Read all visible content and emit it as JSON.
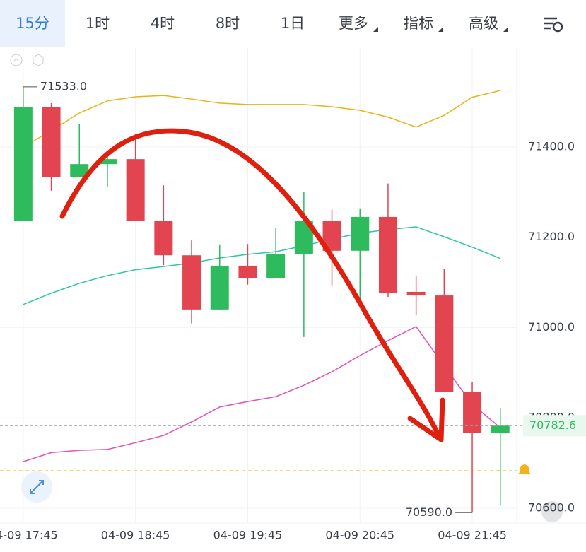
{
  "tabs": {
    "items": [
      "15分",
      "1时",
      "4时",
      "8时",
      "1日",
      "更多",
      "指标",
      "高级"
    ],
    "active": 0
  },
  "chart_data": {
    "type": "candlestick",
    "categories": [
      "04-09 17:45",
      null,
      null,
      null,
      "04-09 18:45",
      null,
      null,
      null,
      "04-09 19:45",
      null,
      null,
      null,
      "04-09 20:45",
      null,
      null,
      null,
      "04-09 21:45",
      null
    ],
    "open": [
      71237,
      71489,
      71333,
      71362,
      71373,
      71236,
      71160,
      71040,
      71137,
      71110,
      71162,
      71237,
      71170,
      71245,
      71079,
      71071,
      70857,
      70766
    ],
    "high": [
      71533,
      71497,
      71450,
      71389,
      71428,
      71315,
      71193,
      71184,
      71185,
      71220,
      71300,
      71261,
      71264,
      71319,
      71115,
      71129,
      70880,
      70822
    ],
    "low": [
      71237,
      71303,
      71333,
      71311,
      71236,
      71138,
      71009,
      71040,
      71095,
      71110,
      70979,
      71092,
      71060,
      71068,
      71027,
      70857,
      70590,
      70606
    ],
    "close": [
      71489,
      71333,
      71362,
      71373,
      71236,
      71160,
      71040,
      71137,
      71110,
      71162,
      71237,
      71170,
      71245,
      71077,
      71071,
      70857,
      70766,
      70782.6
    ],
    "up_color": "#2dbb5d",
    "down_color": "#e2454f",
    "lines": [
      {
        "color": "#e8b316",
        "values": [
          71400,
          71436,
          71475,
          71502,
          71511,
          71514,
          71506,
          71497,
          71494,
          71494,
          71494,
          71489,
          71481,
          71466,
          71444,
          71470,
          71510,
          71525
        ]
      },
      {
        "color": "#2cc6a5",
        "values": [
          71051,
          71076,
          71098,
          71115,
          71128,
          71135,
          71143,
          71154,
          71162,
          71168,
          71181,
          71196,
          71209,
          71217,
          71223,
          71201,
          71178,
          71153
        ]
      },
      {
        "color": "#e052b4",
        "values": [
          70703,
          70723,
          70728,
          70730,
          70745,
          70761,
          70791,
          70824,
          70836,
          70847,
          70872,
          70902,
          70938,
          70971,
          71002,
          70915,
          70830,
          70778
        ]
      }
    ],
    "ylim": [
      70567,
      71619
    ],
    "yticks": [
      {
        "value": 70600,
        "label": "70600.0"
      },
      {
        "value": 70800,
        "label": "70800.0"
      },
      {
        "value": 71000,
        "label": "71000.0"
      },
      {
        "value": 71200,
        "label": "71200.0"
      },
      {
        "value": 71400,
        "label": "71400.0"
      }
    ],
    "grid": true,
    "high_marker": {
      "value": 71533,
      "label": "71533.0"
    },
    "low_marker": {
      "value": 70590,
      "label": "70590.0"
    },
    "last_price": {
      "value": 70782.6,
      "label": "70782.6"
    },
    "alert_line": 70683
  }
}
